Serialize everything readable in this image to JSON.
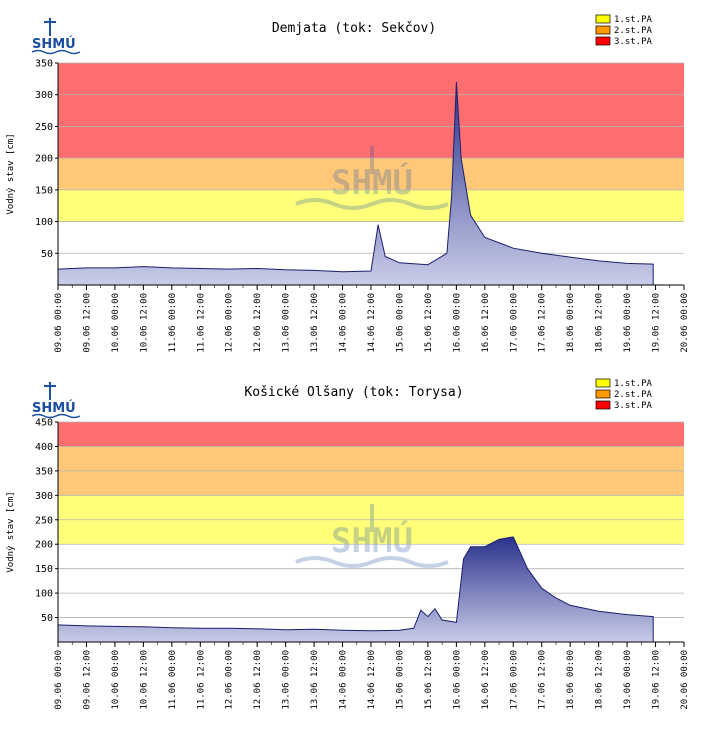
{
  "chart_data": [
    {
      "type": "area",
      "title": "Demjata (tok: Sekčov)",
      "ylabel": "Vodný stav [cm]",
      "ylim": [
        0,
        350
      ],
      "yticks": [
        50,
        100,
        150,
        200,
        250,
        300,
        350
      ],
      "x_start": "09.06 00:00",
      "x_end": "20.06 00:00",
      "xticks": [
        "09.06 00:00",
        "09.06 12:00",
        "10.06 00:00",
        "10.06 12:00",
        "11.06 00:00",
        "11.06 12:00",
        "12.06 00:00",
        "12.06 12:00",
        "13.06 00:00",
        "13.06 12:00",
        "14.06 00:00",
        "14.06 12:00",
        "15.06 00:00",
        "15.06 12:00",
        "16.06 00:00",
        "16.06 12:00",
        "17.06 00:00",
        "17.06 12:00",
        "18.06 00:00",
        "18.06 12:00",
        "19.06 00:00",
        "19.06 12:00",
        "20.06 00:00"
      ],
      "logo_text": "SHMÚ",
      "legend": [
        {
          "label": "1.st.PA",
          "color": "#ffff00"
        },
        {
          "label": "2.st.PA",
          "color": "#ff9900"
        },
        {
          "label": "3.st.PA",
          "color": "#ff0000"
        }
      ],
      "bands": [
        {
          "from": 100,
          "to": 150,
          "color": "#ffff7a"
        },
        {
          "from": 150,
          "to": 200,
          "color": "#ffc878"
        },
        {
          "from": 200,
          "to": 350,
          "color": "#ff6e6e"
        }
      ],
      "series": [
        {
          "x": [
            "09.06 00:00",
            "09.06 12:00",
            "10.06 00:00",
            "10.06 12:00",
            "11.06 00:00",
            "11.06 12:00",
            "12.06 00:00",
            "12.06 12:00",
            "13.06 00:00",
            "13.06 12:00",
            "14.06 00:00",
            "14.06 12:00",
            "14.06 14:00",
            "14.06 15:00",
            "14.06 18:00",
            "15.06 00:00",
            "15.06 12:00",
            "15.06 20:00",
            "15.06 22:00",
            "16.06 00:00",
            "16.06 02:00",
            "16.06 06:00",
            "16.06 12:00",
            "17.06 00:00",
            "17.06 12:00",
            "18.06 00:00",
            "18.06 12:00",
            "19.06 00:00",
            "19.06 11:00"
          ],
          "values": [
            25,
            27,
            27,
            29,
            27,
            26,
            25,
            26,
            24,
            23,
            21,
            22,
            70,
            95,
            45,
            35,
            32,
            50,
            140,
            320,
            200,
            110,
            75,
            58,
            50,
            44,
            38,
            34,
            33
          ]
        }
      ]
    },
    {
      "type": "area",
      "title": "Košické Olšany (tok: Torysa)",
      "ylabel": "Vodný stav [cm]",
      "ylim": [
        0,
        450
      ],
      "yticks": [
        50,
        100,
        150,
        200,
        250,
        300,
        350,
        400,
        450
      ],
      "x_start": "09.06 00:00",
      "x_end": "20.06 00:00",
      "xticks": [
        "09.06 00:00",
        "09.06 12:00",
        "10.06 00:00",
        "10.06 12:00",
        "11.06 00:00",
        "11.06 12:00",
        "12.06 00:00",
        "12.06 12:00",
        "13.06 00:00",
        "13.06 12:00",
        "14.06 00:00",
        "14.06 12:00",
        "15.06 00:00",
        "15.06 12:00",
        "16.06 00:00",
        "16.06 12:00",
        "17.06 00:00",
        "17.06 12:00",
        "18.06 00:00",
        "18.06 12:00",
        "19.06 00:00",
        "19.06 12:00",
        "20.06 00:00"
      ],
      "logo_text": "SHMÚ",
      "legend": [
        {
          "label": "1.st.PA",
          "color": "#ffff00"
        },
        {
          "label": "2.st.PA",
          "color": "#ff9900"
        },
        {
          "label": "3.st.PA",
          "color": "#ff0000"
        }
      ],
      "bands": [
        {
          "from": 200,
          "to": 300,
          "color": "#ffff7a"
        },
        {
          "from": 300,
          "to": 400,
          "color": "#ffc878"
        },
        {
          "from": 400,
          "to": 450,
          "color": "#ff6e6e"
        }
      ],
      "series": [
        {
          "x": [
            "09.06 00:00",
            "09.06 12:00",
            "10.06 00:00",
            "10.06 12:00",
            "11.06 00:00",
            "11.06 12:00",
            "12.06 00:00",
            "12.06 12:00",
            "13.06 00:00",
            "13.06 12:00",
            "14.06 00:00",
            "14.06 12:00",
            "15.06 00:00",
            "15.06 06:00",
            "15.06 09:00",
            "15.06 12:00",
            "15.06 15:00",
            "15.06 18:00",
            "16.06 00:00",
            "16.06 03:00",
            "16.06 06:00",
            "16.06 12:00",
            "16.06 18:00",
            "17.06 00:00",
            "17.06 06:00",
            "17.06 12:00",
            "17.06 18:00",
            "18.06 00:00",
            "18.06 12:00",
            "19.06 00:00",
            "19.06 11:00"
          ],
          "values": [
            35,
            33,
            32,
            31,
            29,
            28,
            28,
            27,
            25,
            26,
            24,
            23,
            24,
            28,
            65,
            52,
            68,
            45,
            40,
            170,
            195,
            195,
            210,
            215,
            150,
            110,
            90,
            75,
            63,
            56,
            52
          ]
        }
      ]
    }
  ]
}
